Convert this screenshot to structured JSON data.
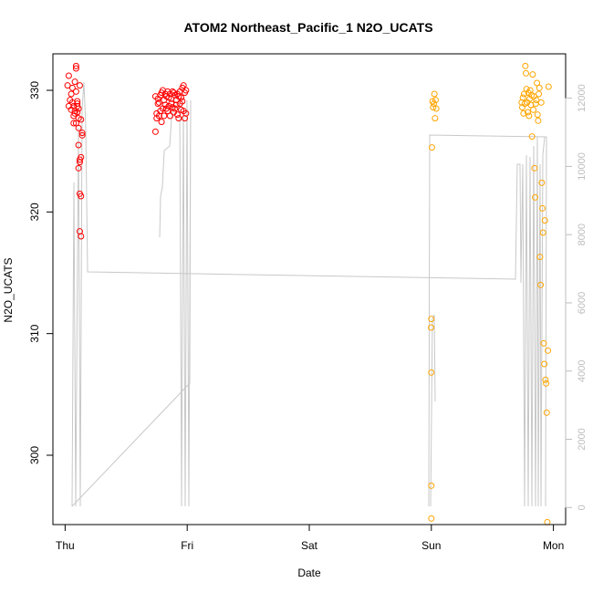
{
  "chart_data": {
    "type": "scatter",
    "title": "ATOM2 Northeast_Pacific_1 N2O_UCATS",
    "xlabel": "Date",
    "ylabel": "N2O_UCATS",
    "x_ticks": [
      "Thu",
      "Fri",
      "Sat",
      "Sun",
      "Mon"
    ],
    "x_tick_values": [
      0,
      1,
      2,
      3,
      4
    ],
    "xlim": [
      -0.1,
      4.1
    ],
    "ylim": [
      294.3,
      333.0
    ],
    "y_ticks": [
      300,
      310,
      320,
      330
    ],
    "y2_ticks": [
      0,
      2000,
      4000,
      6000,
      8000,
      10000,
      12000
    ],
    "y2lim": [
      -500,
      13300
    ],
    "grid": false,
    "series": [
      {
        "color": "#ff0000",
        "marker": "open-circle",
        "points": [
          [
            0.02,
            330.4
          ],
          [
            0.03,
            331.2
          ],
          [
            0.04,
            329.2
          ],
          [
            0.03,
            328.7
          ],
          [
            0.05,
            329.7
          ],
          [
            0.05,
            328.4
          ],
          [
            0.06,
            330.2
          ],
          [
            0.06,
            329.0
          ],
          [
            0.07,
            328.7
          ],
          [
            0.07,
            327.9
          ],
          [
            0.07,
            327.3
          ],
          [
            0.08,
            330.7
          ],
          [
            0.08,
            328.3
          ],
          [
            0.08,
            328.1
          ],
          [
            0.09,
            332.0
          ],
          [
            0.09,
            331.8
          ],
          [
            0.09,
            329.9
          ],
          [
            0.09,
            327.3
          ],
          [
            0.1,
            329.1
          ],
          [
            0.1,
            328.9
          ],
          [
            0.1,
            328.7
          ],
          [
            0.1,
            328.2
          ],
          [
            0.11,
            326.9
          ],
          [
            0.11,
            328.5
          ],
          [
            0.11,
            327.7
          ],
          [
            0.11,
            325.5
          ],
          [
            0.11,
            323.6
          ],
          [
            0.12,
            330.4
          ],
          [
            0.12,
            324.3
          ],
          [
            0.12,
            324.1
          ],
          [
            0.12,
            321.5
          ],
          [
            0.12,
            318.4
          ],
          [
            0.13,
            324.5
          ],
          [
            0.13,
            321.3
          ],
          [
            0.13,
            318.0
          ],
          [
            0.13,
            327.6
          ],
          [
            0.14,
            326.3
          ],
          [
            0.14,
            326.5
          ],
          [
            0.74,
            329.5
          ],
          [
            0.74,
            326.6
          ],
          [
            0.75,
            328.1
          ],
          [
            0.75,
            327.7
          ],
          [
            0.76,
            328.9
          ],
          [
            0.76,
            329.3
          ],
          [
            0.77,
            327.9
          ],
          [
            0.77,
            329.0
          ],
          [
            0.78,
            328.3
          ],
          [
            0.78,
            329.6
          ],
          [
            0.79,
            327.4
          ],
          [
            0.79,
            329.8
          ],
          [
            0.8,
            328.5
          ],
          [
            0.8,
            330.0
          ],
          [
            0.81,
            327.9
          ],
          [
            0.81,
            329.2
          ],
          [
            0.82,
            328.8
          ],
          [
            0.82,
            329.7
          ],
          [
            0.83,
            328.5
          ],
          [
            0.83,
            329.5
          ],
          [
            0.84,
            328.3
          ],
          [
            0.84,
            329.9
          ],
          [
            0.85,
            328.7
          ],
          [
            0.85,
            329.4
          ],
          [
            0.86,
            327.9
          ],
          [
            0.86,
            329.7
          ],
          [
            0.87,
            328.9
          ],
          [
            0.87,
            329.3
          ],
          [
            0.88,
            328.6
          ],
          [
            0.88,
            329.9
          ],
          [
            0.89,
            328.2
          ],
          [
            0.89,
            329.8
          ],
          [
            0.9,
            328.5
          ],
          [
            0.9,
            329.6
          ],
          [
            0.91,
            328.8
          ],
          [
            0.91,
            329.2
          ],
          [
            0.92,
            328.0
          ],
          [
            0.92,
            329.7
          ],
          [
            0.93,
            327.7
          ],
          [
            0.93,
            329.5
          ],
          [
            0.94,
            328.9
          ],
          [
            0.94,
            329.9
          ],
          [
            0.95,
            328.4
          ],
          [
            0.95,
            329.4
          ],
          [
            0.96,
            329.1
          ],
          [
            0.96,
            330.2
          ],
          [
            0.97,
            328.3
          ],
          [
            0.97,
            330.4
          ],
          [
            0.98,
            327.7
          ],
          [
            0.98,
            329.8
          ],
          [
            0.99,
            328.1
          ],
          [
            0.99,
            330.0
          ]
        ]
      },
      {
        "color": "#ffa500",
        "marker": "open-circle",
        "points": [
          [
            2.998,
            310.5
          ],
          [
            3.0,
            311.2
          ],
          [
            3.0,
            306.8
          ],
          [
            3.0,
            297.5
          ],
          [
            3.0,
            294.8
          ],
          [
            3.005,
            325.3
          ],
          [
            3.01,
            329.1
          ],
          [
            3.015,
            328.6
          ],
          [
            3.02,
            328.9
          ],
          [
            3.025,
            329.7
          ],
          [
            3.03,
            327.7
          ],
          [
            3.035,
            329.2
          ],
          [
            3.04,
            328.5
          ],
          [
            3.74,
            329.0
          ],
          [
            3.745,
            328.6
          ],
          [
            3.75,
            329.4
          ],
          [
            3.755,
            328.1
          ],
          [
            3.76,
            329.7
          ],
          [
            3.765,
            328.9
          ],
          [
            3.77,
            332.0
          ],
          [
            3.775,
            331.4
          ],
          [
            3.78,
            330.1
          ],
          [
            3.785,
            329.0
          ],
          [
            3.79,
            328.2
          ],
          [
            3.795,
            329.8
          ],
          [
            3.8,
            327.9
          ],
          [
            3.805,
            329.3
          ],
          [
            3.81,
            330.0
          ],
          [
            3.815,
            328.8
          ],
          [
            3.82,
            329.6
          ],
          [
            3.825,
            326.2
          ],
          [
            3.83,
            331.3
          ],
          [
            3.835,
            328.4
          ],
          [
            3.84,
            329.5
          ],
          [
            3.845,
            323.6
          ],
          [
            3.85,
            321.2
          ],
          [
            3.855,
            328.9
          ],
          [
            3.86,
            329.2
          ],
          [
            3.865,
            330.6
          ],
          [
            3.87,
            328.0
          ],
          [
            3.875,
            327.5
          ],
          [
            3.88,
            329.7
          ],
          [
            3.885,
            330.2
          ],
          [
            3.89,
            316.3
          ],
          [
            3.895,
            314.0
          ],
          [
            3.9,
            329.0
          ],
          [
            3.905,
            322.4
          ],
          [
            3.91,
            320.3
          ],
          [
            3.915,
            318.3
          ],
          [
            3.92,
            309.2
          ],
          [
            3.925,
            307.5
          ],
          [
            3.93,
            319.3
          ],
          [
            3.935,
            306.2
          ],
          [
            3.94,
            305.9
          ],
          [
            3.945,
            303.5
          ],
          [
            3.95,
            294.5
          ],
          [
            3.955,
            308.6
          ],
          [
            3.96,
            330.3
          ]
        ]
      }
    ]
  }
}
